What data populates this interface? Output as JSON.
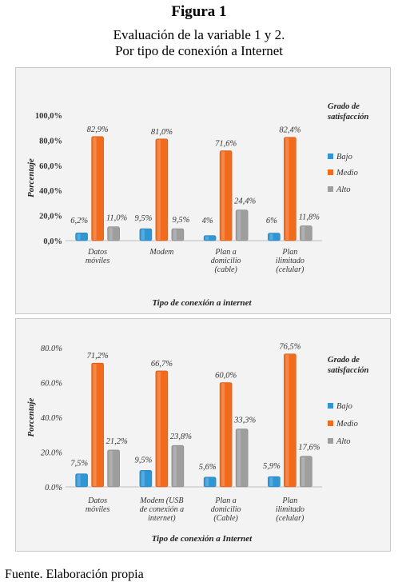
{
  "figure": {
    "label": "Figura 1",
    "subtitle_line1": "Evaluación de la variable 1 y 2.",
    "subtitle_line2": "Por tipo de conexión a Internet",
    "source": "Fuente. Elaboración propia"
  },
  "colors": {
    "bajo": "#2f96d6",
    "medio": "#f26b1d",
    "alto": "#9e9e9e"
  },
  "chart_data": [
    {
      "type": "bar",
      "ylabel": "Porcentaje",
      "xlabel": "Tipo de conexión a internet",
      "legend_title": [
        "Grado de",
        "satisfacción"
      ],
      "legend_position": "right",
      "ylim": [
        0,
        100
      ],
      "yticks": [
        0,
        20,
        40,
        60,
        80,
        100
      ],
      "ytick_labels": [
        "0,0%",
        "20,0%",
        "40,0%",
        "60,0%",
        "80,0%",
        "100,0%"
      ],
      "categories": [
        [
          "Datos",
          "móviles"
        ],
        [
          "Modem"
        ],
        [
          "Plan a",
          "domicilio",
          "(cable)"
        ],
        [
          "Plan",
          "ilimitado",
          "(celular)"
        ]
      ],
      "series": [
        {
          "name": "Bajo",
          "values": [
            6.2,
            9.5,
            4.0,
            6.0
          ],
          "labels": [
            "6,2%",
            "9,5%",
            "4%",
            "6%"
          ]
        },
        {
          "name": "Medio",
          "values": [
            82.9,
            81.0,
            71.6,
            82.4
          ],
          "labels": [
            "82,9%",
            "81,0%",
            "71,6%",
            "82,4%"
          ]
        },
        {
          "name": "Alto",
          "values": [
            11.0,
            9.5,
            24.4,
            11.8
          ],
          "labels": [
            "11,0%",
            "9,5%",
            "24,4%",
            "11,8%"
          ]
        }
      ]
    },
    {
      "type": "bar",
      "ylabel": "Porcentaje",
      "xlabel": "Tipo de conexión a Internet",
      "legend_title": [
        "Grado de",
        "satisfacción"
      ],
      "legend_position": "right",
      "ylim": [
        0,
        80
      ],
      "yticks": [
        0,
        20,
        40,
        60,
        80
      ],
      "ytick_labels": [
        "0.0%",
        "20.0%",
        "40.0%",
        "60.0%",
        "80.0%"
      ],
      "categories": [
        [
          "Datos",
          "móviles"
        ],
        [
          "Modem (USB",
          "de conexión a",
          "internet)"
        ],
        [
          "Plan a",
          "domicilio",
          "(Cable)"
        ],
        [
          "Plan",
          "ilimitado",
          "(celular)"
        ]
      ],
      "series": [
        {
          "name": "Bajo",
          "values": [
            7.5,
            9.5,
            5.6,
            5.9
          ],
          "labels": [
            "7,5%",
            "9,5%",
            "5,6%",
            "5,9%"
          ]
        },
        {
          "name": "Medio",
          "values": [
            71.2,
            66.7,
            60.0,
            76.5
          ],
          "labels": [
            "71,2%",
            "66,7%",
            "60,0%",
            "76,5%"
          ]
        },
        {
          "name": "Alto",
          "values": [
            21.2,
            23.8,
            33.3,
            17.6
          ],
          "labels": [
            "21,2%",
            "23,8%",
            "33,3%",
            "17,6%"
          ]
        }
      ]
    }
  ]
}
